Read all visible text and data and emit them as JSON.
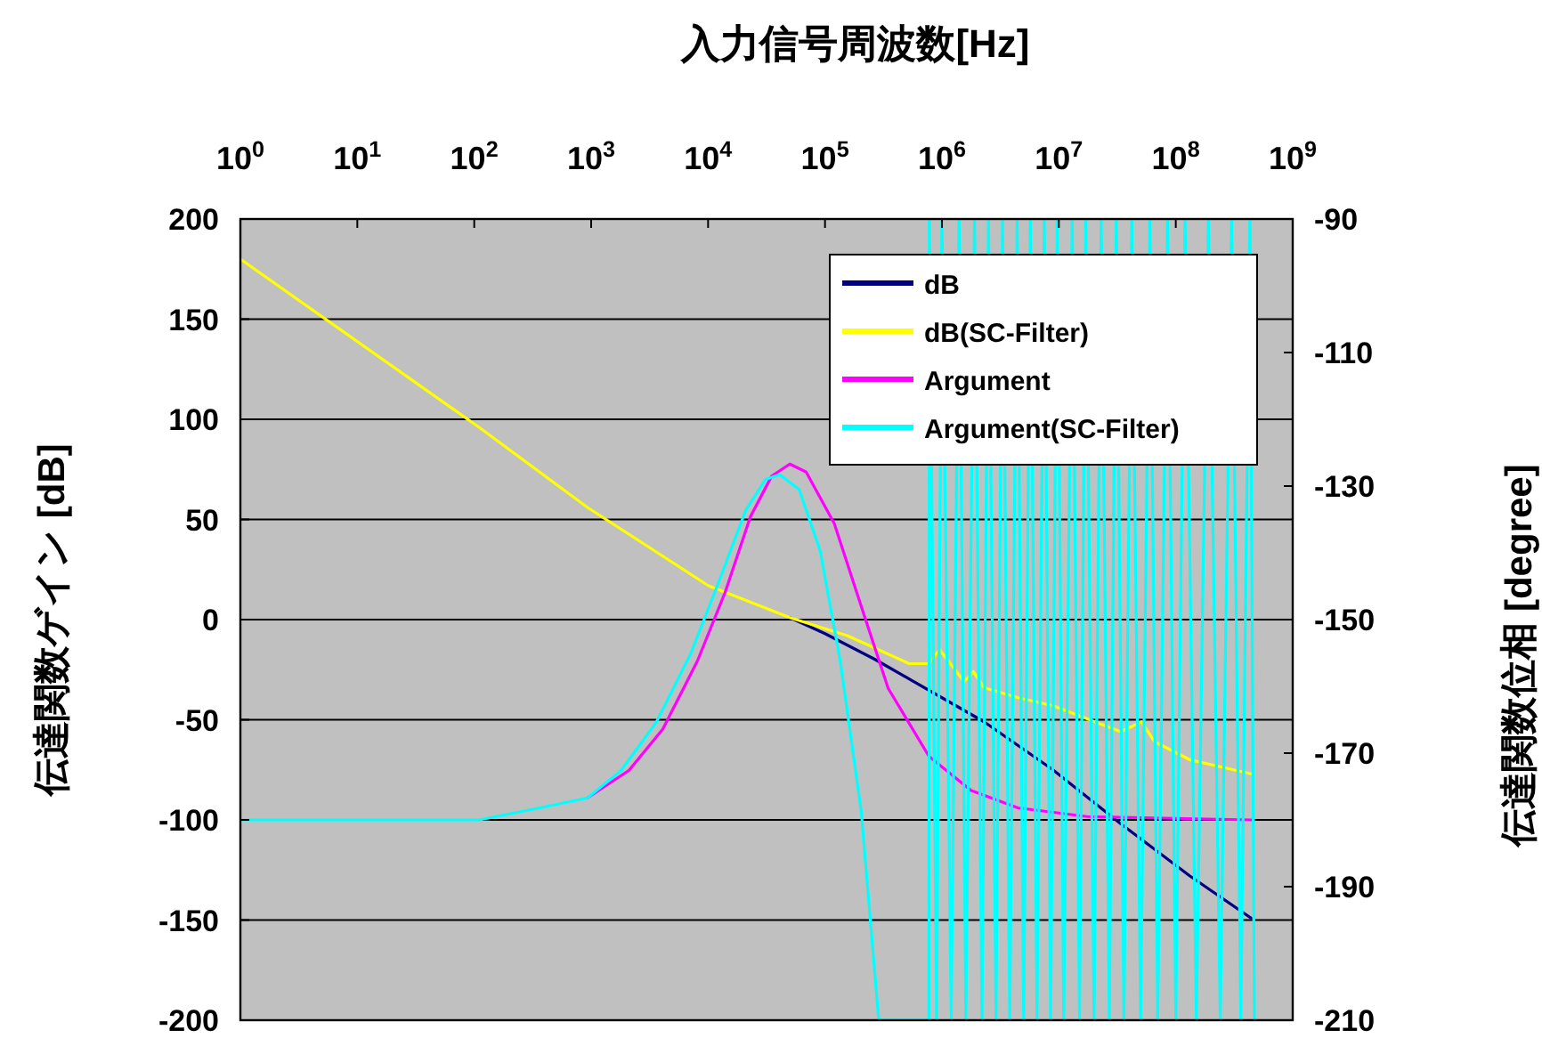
{
  "chart_data": {
    "type": "line",
    "xlabel": "入力信号周波数[Hz]",
    "ylabel": "伝達関数ゲイン [dB]",
    "y2label": "伝達関数位相 [degree]",
    "log": "x",
    "grid": "y",
    "legend": "top right",
    "line_style": "solid",
    "marker": "none",
    "xlim": [
      1,
      1000000000
    ],
    "xticks": [
      {
        "value": 1,
        "label": "10$^{0}$"
      },
      {
        "value": 10,
        "label": "10$^{1}$"
      },
      {
        "value": 100,
        "label": "10$^{2}$"
      },
      {
        "value": 1000,
        "label": "10$^{3}$"
      },
      {
        "value": 10000,
        "label": "10$^{4}$"
      },
      {
        "value": 100000,
        "label": "10$^{5}$"
      },
      {
        "value": 1000000,
        "label": "10$^{6}$"
      },
      {
        "value": 10000000,
        "label": "10$^{7}$"
      },
      {
        "value": 100000000,
        "label": "10$^{8}$"
      },
      {
        "value": 1000000000,
        "label": "10$^{9}$"
      }
    ],
    "ylim": [
      -200,
      200
    ],
    "yticks": [
      -200,
      -150,
      -100,
      -50,
      0,
      50,
      100,
      150,
      200
    ],
    "y2lim": [
      -210,
      -90
    ],
    "y2ticks": [
      -210,
      -190,
      -170,
      -150,
      -130,
      -110,
      -90
    ],
    "series": [
      {
        "name": "dB",
        "color": "#000080",
        "x": [
          50000,
          100000,
          270000,
          1000000,
          2290000,
          8900000,
          33900000,
          132000000,
          440000000
        ],
        "values": [
          1,
          -7,
          -20,
          -39,
          -51,
          -75,
          -102,
          -128,
          -149
        ]
      },
      {
        "name": "dB(SC-Filter)",
        "color": "#ffff00",
        "x": [
          1,
          110,
          930,
          10000,
          50000,
          155000,
          525000,
          776000,
          955000,
          1550000,
          1860000,
          2290000,
          4470000,
          8900000,
          33900000,
          51000000,
          66000000,
          132000000,
          440000000
        ],
        "values": [
          180,
          96,
          56,
          17,
          1,
          -8,
          -22,
          -22,
          -15,
          -31,
          -26,
          -34,
          -39,
          -43,
          -56,
          -51,
          -61,
          -70,
          -77
        ]
      },
      {
        "name": "Argument",
        "color": "#ff00ff",
        "axis": "y2",
        "x": [
          930,
          2100,
          4100,
          8100,
          14000,
          23000,
          35000,
          50000,
          69000,
          120000,
          204000,
          347000,
          776000,
          1780000,
          4470000,
          17400000,
          440000000
        ],
        "values": [
          -176.7,
          -172.6,
          -166.4,
          -156.2,
          -145.9,
          -134.6,
          -128.5,
          -126.7,
          -127.9,
          -135.6,
          -148,
          -160.3,
          -170.5,
          -175.6,
          -178.2,
          -179.5,
          -180
        ]
      },
      {
        "name": "Argument(SC-Filter)",
        "color": "#00ffff",
        "axis": "y2",
        "x": [
          1,
          110,
          363,
          930,
          1800,
          3600,
          7100,
          12000,
          21000,
          31000,
          41000,
          60000,
          91000,
          135000,
          204000,
          288000,
          776000,
          780000,
          900000,
          1000000,
          1200000,
          1400000,
          1600000,
          1900000,
          2200000,
          2500000,
          2900000,
          3300000,
          3800000,
          4400000,
          5000000,
          5700000,
          6500000,
          7500000,
          8500000,
          9700000,
          11000000,
          13000000,
          15000000,
          17000000,
          20000000,
          23000000,
          27000000,
          31000000,
          36000000,
          42000000,
          50000000,
          60000000,
          70000000,
          85000000,
          100000000,
          120000000,
          150000000,
          190000000,
          240000000,
          300000000,
          360000000,
          430000000,
          470000000
        ],
        "values": [
          -180,
          -180,
          -178.2,
          -176.7,
          -172.6,
          -165.4,
          -155.1,
          -144.9,
          -133.6,
          -129,
          -128.3,
          -130.5,
          -139.7,
          -156.2,
          -178.7,
          -210,
          -210,
          -90,
          -210,
          -90,
          -210,
          -90,
          -210,
          -90,
          -210,
          -90,
          -210,
          -90,
          -210,
          -90,
          -210,
          -90,
          -210,
          -90,
          -210,
          -90,
          -210,
          -90,
          -210,
          -90,
          -210,
          -90,
          -210,
          -90,
          -210,
          -90,
          -210,
          -90,
          -210,
          -90,
          -210,
          -90,
          -210,
          -90,
          -210,
          -90,
          -210,
          -90,
          -210
        ]
      }
    ]
  }
}
